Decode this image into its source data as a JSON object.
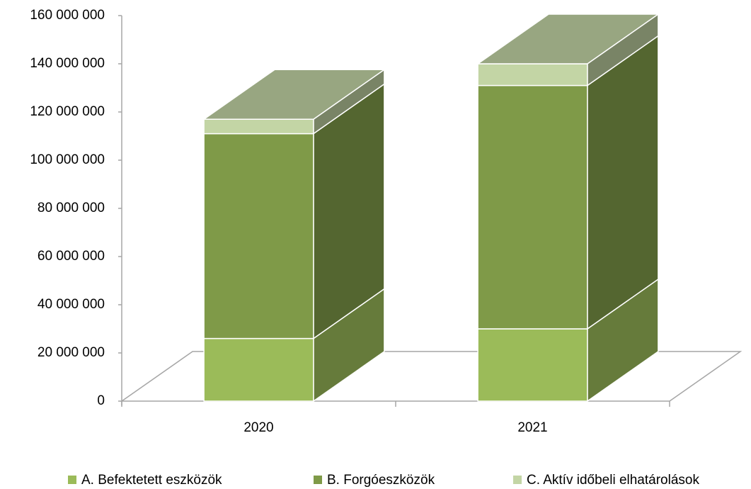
{
  "chart_data": {
    "type": "bar3d_stacked",
    "categories": [
      "2020",
      "2021"
    ],
    "series": [
      {
        "name": "A. Befektetett eszközök",
        "color": "#9bbb59",
        "values": [
          26000000,
          30000000
        ]
      },
      {
        "name": "B. Forgóeszközök",
        "color": "#7f9a48",
        "values": [
          85000000,
          101000000
        ]
      },
      {
        "name": "C. Aktív időbeli elhatárolások",
        "color": "#c3d5a5",
        "values": [
          6000000,
          9000000
        ]
      }
    ],
    "ylim": [
      0,
      160000000
    ],
    "yticks": [
      0,
      {
        "value": 20000000,
        "label": "20 000 000"
      },
      {
        "value": 40000000,
        "label": "40 000 000"
      },
      {
        "value": 60000000,
        "label": "60 000 000"
      },
      {
        "value": 80000000,
        "label": "80 000 000"
      },
      {
        "value": 100000000,
        "label": "100 000 000"
      },
      {
        "value": 120000000,
        "label": "120 000 000"
      },
      {
        "value": 140000000,
        "label": "140 000 000"
      },
      {
        "value": 160000000,
        "label": "160 000 000"
      }
    ],
    "legend": "bottom"
  }
}
